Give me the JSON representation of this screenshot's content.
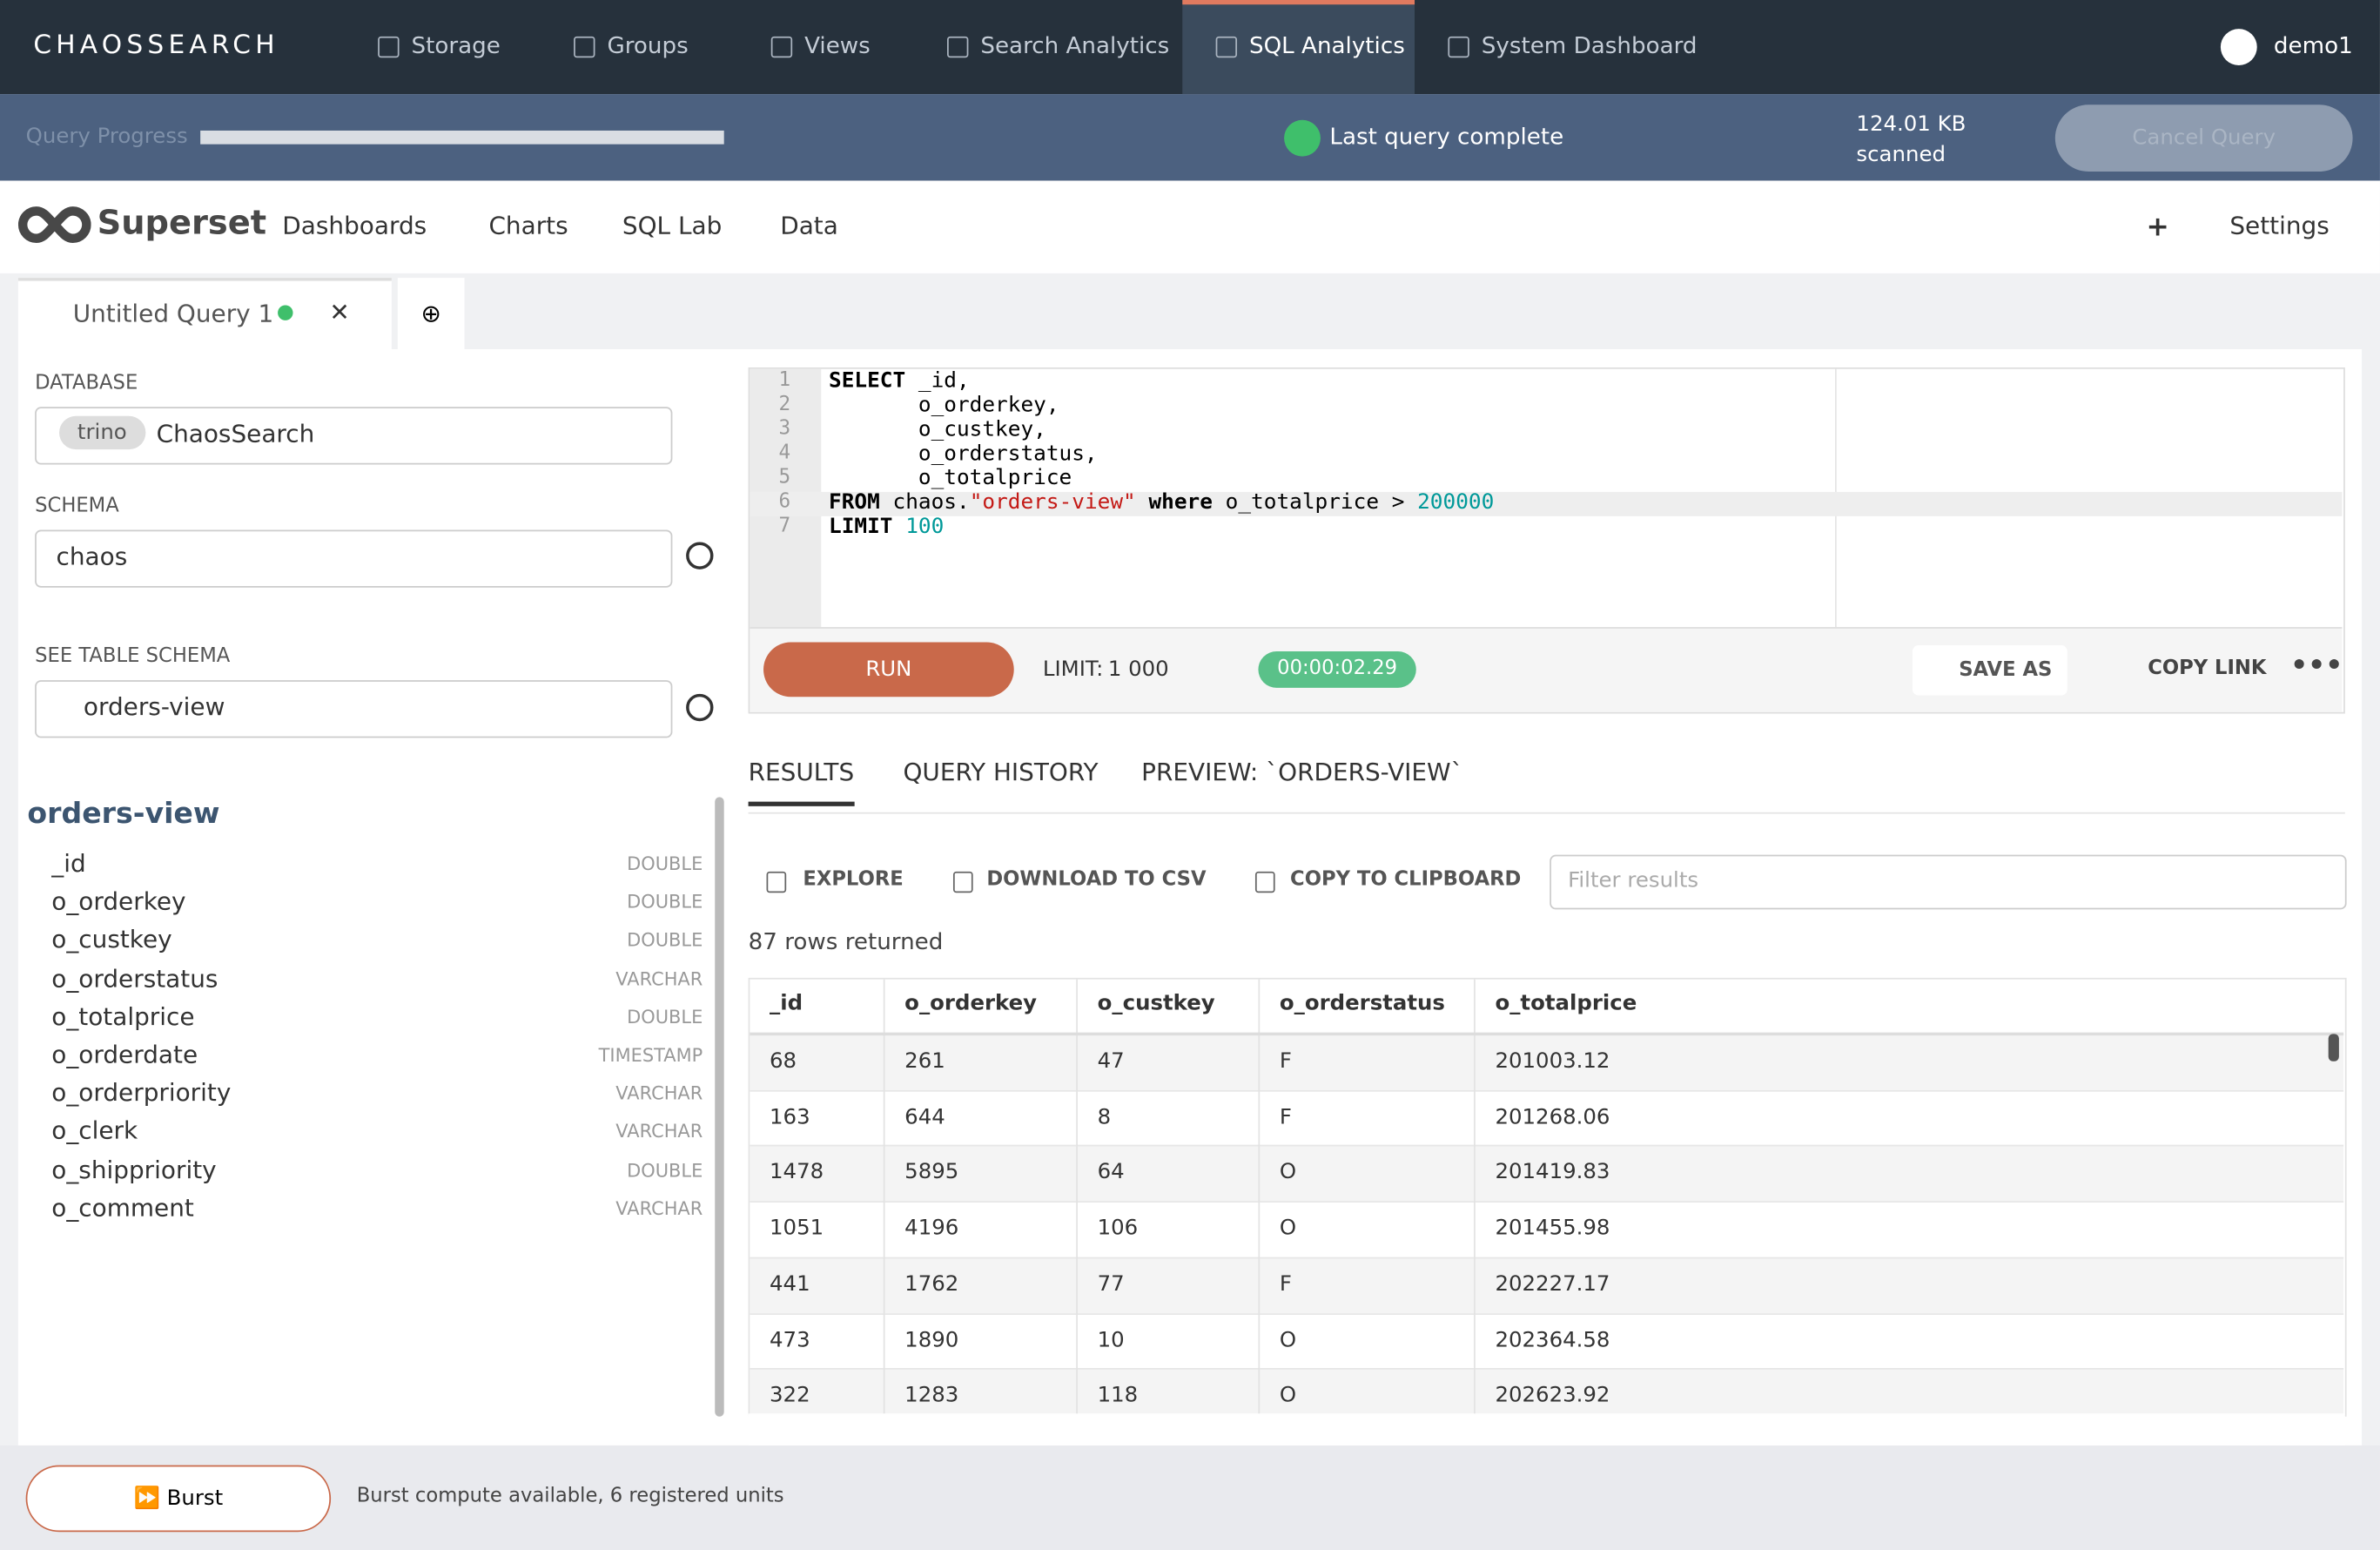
{
  "nav": {
    "brand": "CHAOSSEARCH",
    "items": [
      "Storage",
      "Groups",
      "Views",
      "Search Analytics",
      "SQL Analytics",
      "System Dashboard"
    ],
    "active": 4,
    "user": "demo1"
  },
  "progress": {
    "label": "Query Progress",
    "status": "Last query complete",
    "scanned": [
      "124.01 KB",
      "scanned"
    ],
    "cancel": "Cancel Query"
  },
  "superset": {
    "logo": "Superset",
    "menu": [
      "Dashboards",
      "Charts",
      "SQL Lab",
      "Data"
    ],
    "plus": "+",
    "settings": "Settings"
  },
  "tab": {
    "title": "Untitled Query 1"
  },
  "sidebar": {
    "database_label": "DATABASE",
    "database_badge": "trino",
    "database": "ChaosSearch",
    "schema_label": "SCHEMA",
    "schema": "chaos",
    "table_label": "SEE TABLE SCHEMA",
    "table": "orders-view",
    "table_title": "orders-view",
    "columns": [
      [
        "_id",
        "DOUBLE"
      ],
      [
        "o_orderkey",
        "DOUBLE"
      ],
      [
        "o_custkey",
        "DOUBLE"
      ],
      [
        "o_orderstatus",
        "VARCHAR"
      ],
      [
        "o_totalprice",
        "DOUBLE"
      ],
      [
        "o_orderdate",
        "TIMESTAMP"
      ],
      [
        "o_orderpriority",
        "VARCHAR"
      ],
      [
        "o_clerk",
        "VARCHAR"
      ],
      [
        "o_shippriority",
        "DOUBLE"
      ],
      [
        "o_comment",
        "VARCHAR"
      ]
    ]
  },
  "editor": {
    "lines": [
      {
        "number": "1",
        "code": "SELECT _id,"
      },
      {
        "number": "2",
        "code": "       o_orderkey,"
      },
      {
        "number": "3",
        "code": "       o_custkey,"
      },
      {
        "number": "4",
        "code": "       o_orderstatus,"
      },
      {
        "number": "5",
        "code": "       o_totalprice"
      },
      {
        "number": "6",
        "code": "FROM chaos.\"orders-view\" where o_totalprice > 200000"
      },
      {
        "number": "7",
        "code": "LIMIT 100"
      }
    ],
    "run": "RUN",
    "limit_label": "LIMIT:",
    "limit": "1 000",
    "timer": "00:00:02.29",
    "save_as": "SAVE AS",
    "copy_link": "COPY LINK"
  },
  "results": {
    "tabs": [
      "RESULTS",
      "QUERY HISTORY",
      "PREVIEW: `ORDERS-VIEW`"
    ],
    "actions": [
      "EXPLORE",
      "DOWNLOAD TO CSV",
      "COPY TO CLIPBOARD"
    ],
    "filter": "Filter results",
    "count": "87 rows returned",
    "table": {
      "headers": [
        "_id",
        "o_orderkey",
        "o_custkey",
        "o_orderstatus",
        "o_totalprice"
      ],
      "rows": [
        [
          "68",
          "261",
          "47",
          "F",
          "201003.12"
        ],
        [
          "163",
          "644",
          "8",
          "F",
          "201268.06"
        ],
        [
          "1478",
          "5895",
          "64",
          "O",
          "201419.83"
        ],
        [
          "1051",
          "4196",
          "106",
          "O",
          "201455.98"
        ],
        [
          "441",
          "1762",
          "77",
          "F",
          "202227.17"
        ],
        [
          "473",
          "1890",
          "10",
          "O",
          "202364.58"
        ],
        [
          "322",
          "1283",
          "118",
          "O",
          "202623.92"
        ]
      ]
    }
  },
  "footer": {
    "burst": "Burst",
    "message": "Burst compute available, 6 registered units"
  }
}
